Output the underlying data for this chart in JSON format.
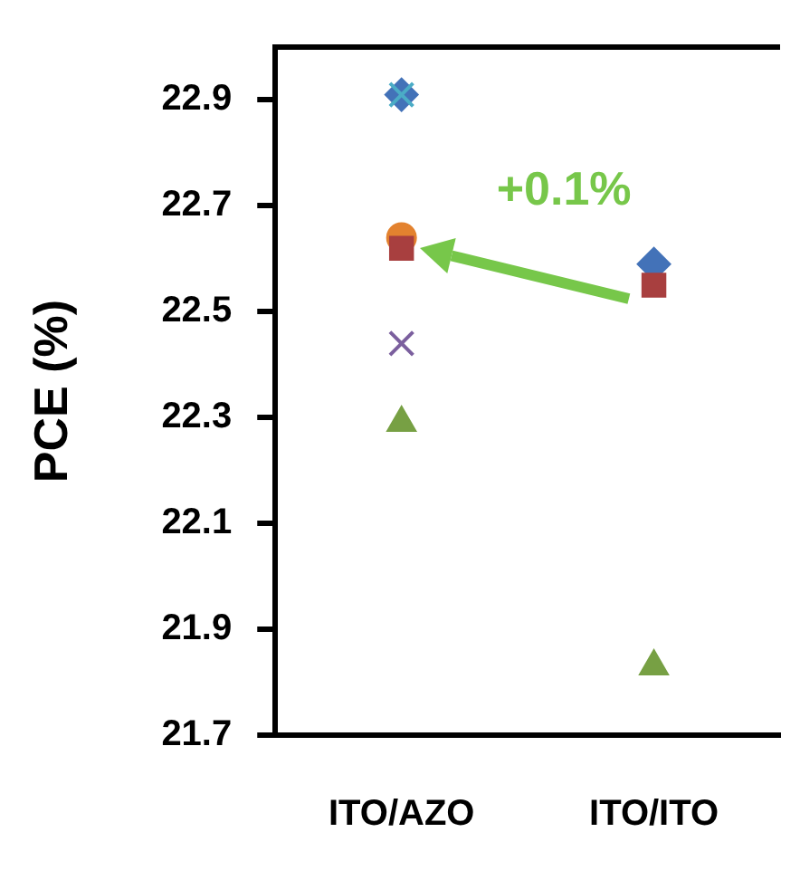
{
  "chart_data": {
    "type": "scatter",
    "ylabel": "PCE (%)",
    "categories": [
      "ITO/AZO",
      "ITO/ITO"
    ],
    "series": [
      {
        "color": "#4372b8",
        "marker": "diamond",
        "values": [
          22.91,
          22.59
        ]
      },
      {
        "color": "#4bacc6",
        "marker": "cross",
        "values": [
          22.91,
          null
        ]
      },
      {
        "color": "#e3822f",
        "marker": "circle",
        "values": [
          22.64,
          null
        ]
      },
      {
        "color": "#a83f3f",
        "marker": "square",
        "values": [
          22.62,
          22.55
        ]
      },
      {
        "color": "#7b5f9e",
        "marker": "cross",
        "values": [
          22.44,
          null
        ]
      },
      {
        "color": "#77a044",
        "marker": "triangle",
        "values": [
          22.29,
          21.83
        ]
      }
    ],
    "ylim": [
      21.7,
      23.0
    ],
    "yticks": [
      21.7,
      21.9,
      22.1,
      22.3,
      22.5,
      22.7,
      22.9
    ],
    "annotations": [
      {
        "text": "+0.1%",
        "x": "ITO/AZO",
        "y": 22.62
      }
    ],
    "grid": false,
    "legend": false
  }
}
